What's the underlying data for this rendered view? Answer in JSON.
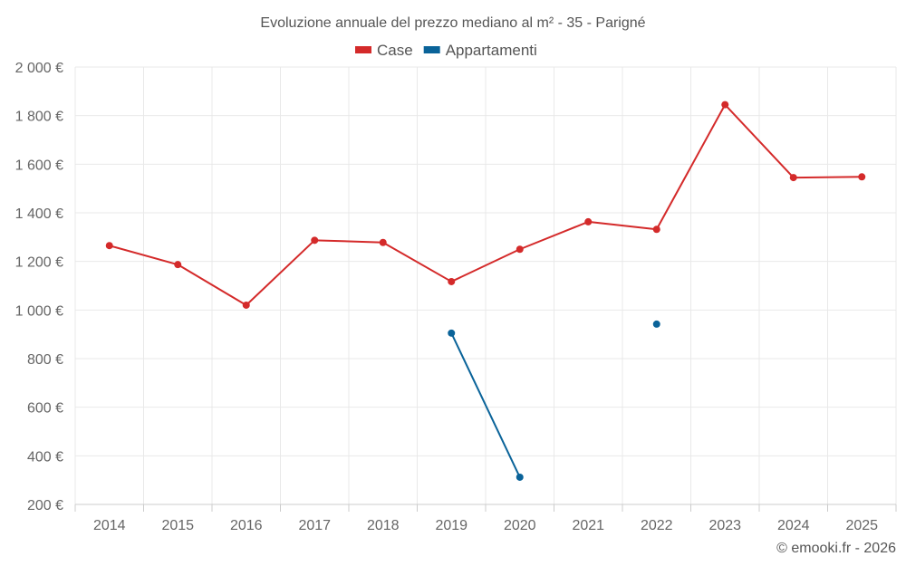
{
  "chart_data": {
    "type": "line",
    "title": "Evoluzione annuale del prezzo mediano al m² - 35 - Parigné",
    "categories": [
      "2014",
      "2015",
      "2016",
      "2017",
      "2018",
      "2019",
      "2020",
      "2021",
      "2022",
      "2023",
      "2024",
      "2025"
    ],
    "series": [
      {
        "name": "Case",
        "color": "#d42a2a",
        "values": [
          1265,
          1187,
          1020,
          1287,
          1278,
          1117,
          1250,
          1363,
          1332,
          1845,
          1545,
          1548
        ]
      },
      {
        "name": "Appartamenti",
        "color": "#0a6399",
        "values": [
          null,
          null,
          null,
          null,
          null,
          905,
          312,
          null,
          942,
          null,
          null,
          null
        ]
      }
    ],
    "ylim": [
      200,
      2000
    ],
    "yticks": [
      200,
      400,
      600,
      800,
      1000,
      1200,
      1400,
      1600,
      1800,
      2000
    ],
    "ytick_labels": [
      "200 €",
      "400 €",
      "600 €",
      "800 €",
      "1 000 €",
      "1 200 €",
      "1 400 €",
      "1 600 €",
      "1 800 €",
      "2 000 €"
    ],
    "xlabel": "",
    "ylabel": "",
    "grid": true,
    "legend_position": "top-center"
  },
  "credit": "© emooki.fr - 2026"
}
